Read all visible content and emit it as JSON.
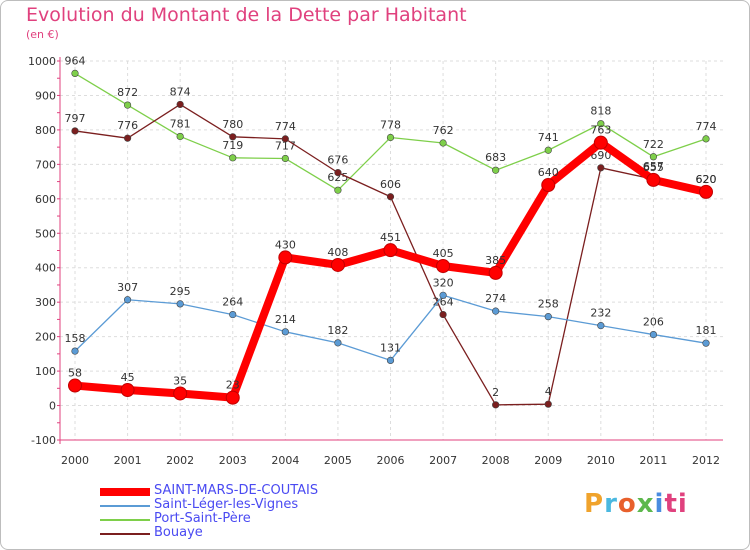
{
  "title": "Evolution du Montant de la Dette par Habitant",
  "subtitle": "(en €)",
  "logo": [
    "P",
    "r",
    "o",
    "x",
    "i",
    "ti"
  ],
  "chart_data": {
    "type": "line",
    "x": [
      "2000",
      "2001",
      "2002",
      "2003",
      "2004",
      "2005",
      "2006",
      "2007",
      "2008",
      "2009",
      "2010",
      "2011",
      "2012"
    ],
    "ylim": [
      -100,
      1000
    ],
    "yticks": [
      "-100",
      "0",
      "100",
      "200",
      "300",
      "400",
      "500",
      "600",
      "700",
      "800",
      "900",
      "1000"
    ],
    "grid": true,
    "legend_position": "bottom",
    "series": [
      {
        "name": "SAINT-MARS-DE-COUTAIS",
        "color": "#ff0000",
        "values": [
          58,
          45,
          35,
          23,
          430,
          408,
          451,
          405,
          385,
          640,
          763,
          655,
          620
        ],
        "labels": [
          "58",
          "45",
          "35",
          "23",
          "430",
          "408",
          "451",
          "405",
          "385",
          "640",
          "763",
          "655",
          "620"
        ]
      },
      {
        "name": "Saint-Léger-les-Vignes",
        "color": "#5b9bd5",
        "values": [
          158,
          307,
          295,
          264,
          214,
          182,
          131,
          320,
          274,
          258,
          232,
          206,
          181
        ],
        "labels": [
          "158",
          "307",
          "295",
          "264",
          "214",
          "182",
          "131",
          "320",
          "274",
          "258",
          "232",
          "206",
          "181"
        ]
      },
      {
        "name": "Port-Saint-Père",
        "color": "#7ecf4a",
        "values": [
          964,
          872,
          781,
          719,
          717,
          625,
          778,
          762,
          683,
          741,
          818,
          722,
          774
        ],
        "labels": [
          "964",
          "872",
          "781",
          "719",
          "717",
          "625",
          "778",
          "762",
          "683",
          "741",
          "818",
          "722",
          "774"
        ]
      },
      {
        "name": "Bouaye",
        "color": "#7b1f1f",
        "values": [
          797,
          776,
          874,
          780,
          774,
          676,
          606,
          264,
          2,
          4,
          690,
          657,
          620
        ],
        "labels": [
          "797",
          "776",
          "874",
          "780",
          "774",
          "676",
          "606",
          "264",
          "2",
          "4",
          "690",
          "657",
          "620"
        ]
      }
    ]
  }
}
